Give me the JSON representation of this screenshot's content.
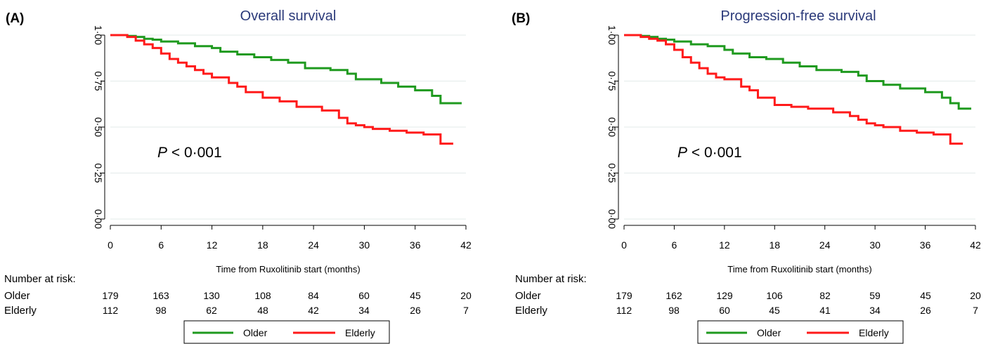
{
  "figure": {
    "legend": {
      "entries": [
        {
          "label": "Older",
          "color": "#1f9a1f"
        },
        {
          "label": "Elderly",
          "color": "#ff1a1a"
        }
      ]
    }
  },
  "panels": [
    {
      "letter": "(A)",
      "title": "Overall survival",
      "pvalue_symbol": "P",
      "pvalue_rest": " < 0·001",
      "xlabel": "Time from Ruxolitinib start (months)",
      "risk_header": "Number at risk:",
      "risk_rows": [
        {
          "label": "Older",
          "values": [
            179,
            163,
            130,
            108,
            84,
            60,
            45,
            20
          ]
        },
        {
          "label": "Elderly",
          "values": [
            112,
            98,
            62,
            48,
            42,
            34,
            26,
            7
          ]
        }
      ]
    },
    {
      "letter": "(B)",
      "title": "Progression-free survival",
      "pvalue_symbol": "P",
      "pvalue_rest": " < 0·001",
      "xlabel": "Time from Ruxolitinib start (months)",
      "risk_header": "Number at risk:",
      "risk_rows": [
        {
          "label": "Older",
          "values": [
            179,
            162,
            129,
            106,
            82,
            59,
            45,
            20
          ]
        },
        {
          "label": "Elderly",
          "values": [
            112,
            98,
            60,
            45,
            41,
            34,
            26,
            7
          ]
        }
      ]
    }
  ],
  "chart_data": [
    {
      "type": "line",
      "step": true,
      "title": "Overall survival",
      "xlabel": "Time from Ruxolitinib start (months)",
      "ylabel": "",
      "xlim": [
        0,
        42
      ],
      "ylim": [
        0,
        1
      ],
      "x_ticks": [
        0,
        6,
        12,
        18,
        24,
        30,
        36,
        42
      ],
      "y_ticks": [
        "0·00",
        "0·25",
        "0·50",
        "0·75",
        "1·00"
      ],
      "grid": true,
      "legend": "bottom-center",
      "series": [
        {
          "name": "Older",
          "color": "#1f9a1f",
          "x": [
            0,
            2,
            3,
            4,
            5,
            6,
            8,
            10,
            12,
            13,
            15,
            17,
            19,
            21,
            23,
            26,
            28,
            29,
            32,
            34,
            36,
            38,
            39,
            41.5
          ],
          "y": [
            1.0,
            0.995,
            0.99,
            0.98,
            0.975,
            0.965,
            0.955,
            0.94,
            0.93,
            0.91,
            0.895,
            0.88,
            0.865,
            0.85,
            0.82,
            0.81,
            0.79,
            0.76,
            0.74,
            0.72,
            0.7,
            0.67,
            0.63,
            0.63
          ]
        },
        {
          "name": "Elderly",
          "color": "#ff1a1a",
          "x": [
            0,
            2,
            3,
            4,
            5,
            6,
            7,
            8,
            9,
            10,
            11,
            12,
            14,
            15,
            16,
            18,
            20,
            22,
            25,
            27,
            28,
            29,
            30,
            31,
            33,
            35,
            37,
            39,
            40.5
          ],
          "y": [
            1.0,
            0.99,
            0.97,
            0.95,
            0.93,
            0.9,
            0.87,
            0.85,
            0.83,
            0.81,
            0.79,
            0.77,
            0.74,
            0.72,
            0.69,
            0.66,
            0.64,
            0.61,
            0.59,
            0.55,
            0.52,
            0.51,
            0.5,
            0.49,
            0.48,
            0.47,
            0.46,
            0.41,
            0.41
          ]
        }
      ]
    },
    {
      "type": "line",
      "step": true,
      "title": "Progression-free survival",
      "xlabel": "Time from Ruxolitinib start (months)",
      "ylabel": "",
      "xlim": [
        0,
        42
      ],
      "ylim": [
        0,
        1
      ],
      "x_ticks": [
        0,
        6,
        12,
        18,
        24,
        30,
        36,
        42
      ],
      "y_ticks": [
        "0·00",
        "0·25",
        "0·50",
        "0·75",
        "1·00"
      ],
      "grid": true,
      "legend": "bottom-center",
      "series": [
        {
          "name": "Older",
          "color": "#1f9a1f",
          "x": [
            0,
            2,
            3,
            4,
            5,
            6,
            8,
            10,
            12,
            13,
            15,
            17,
            19,
            21,
            23,
            26,
            28,
            29,
            31,
            33,
            36,
            38,
            39,
            40,
            41.5
          ],
          "y": [
            1.0,
            0.995,
            0.99,
            0.98,
            0.975,
            0.965,
            0.95,
            0.94,
            0.92,
            0.9,
            0.88,
            0.87,
            0.85,
            0.83,
            0.81,
            0.8,
            0.78,
            0.75,
            0.73,
            0.71,
            0.69,
            0.66,
            0.63,
            0.6,
            0.6
          ]
        },
        {
          "name": "Elderly",
          "color": "#ff1a1a",
          "x": [
            0,
            2,
            3,
            4,
            5,
            6,
            7,
            8,
            9,
            10,
            11,
            12,
            14,
            15,
            16,
            18,
            20,
            22,
            25,
            27,
            28,
            29,
            30,
            31,
            33,
            35,
            37,
            39,
            40.5
          ],
          "y": [
            1.0,
            0.99,
            0.98,
            0.97,
            0.95,
            0.92,
            0.88,
            0.85,
            0.82,
            0.79,
            0.77,
            0.76,
            0.72,
            0.7,
            0.66,
            0.62,
            0.61,
            0.6,
            0.58,
            0.56,
            0.54,
            0.52,
            0.51,
            0.5,
            0.48,
            0.47,
            0.46,
            0.41,
            0.41
          ]
        }
      ]
    }
  ]
}
